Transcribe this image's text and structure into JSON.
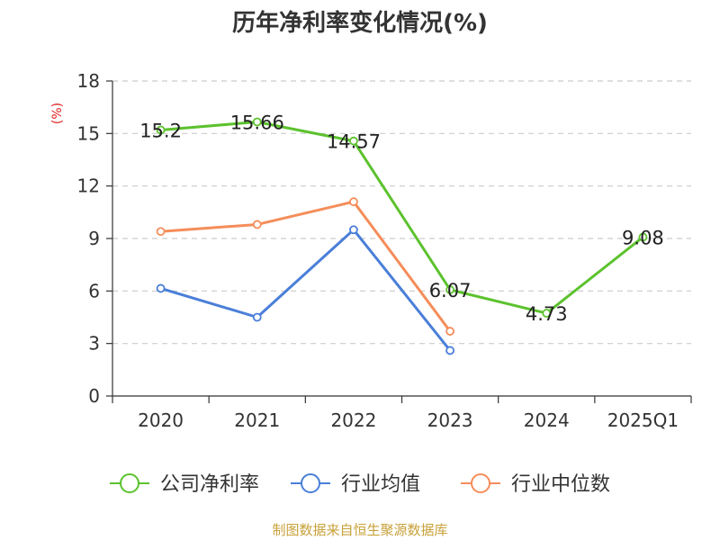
{
  "chart_data": {
    "type": "line",
    "title": "历年净利率变化情况(%)",
    "ylabel": "(%)",
    "xlabel": "",
    "categories": [
      "2020",
      "2021",
      "2022",
      "2023",
      "2024",
      "2025Q1"
    ],
    "ylim": [
      0,
      18
    ],
    "yticks": [
      0,
      3,
      6,
      9,
      12,
      15,
      18
    ],
    "ytick_labels": [
      "0",
      "3",
      "6",
      "9",
      "12",
      "15",
      "18"
    ],
    "grid": true,
    "legend_position": "bottom",
    "series": [
      {
        "name": "公司净利率",
        "color": "#5cc22e",
        "values": [
          15.2,
          15.66,
          14.57,
          6.07,
          4.73,
          9.08
        ],
        "labels": [
          "15.2",
          "15.66",
          "14.57",
          "6.07",
          "4.73",
          "9.08"
        ]
      },
      {
        "name": "行业均值",
        "color": "#4a7fd8",
        "values": [
          6.15,
          4.5,
          9.5,
          2.6,
          null,
          null
        ]
      },
      {
        "name": "行业中位数",
        "color": "#f58d5a",
        "values": [
          9.4,
          9.8,
          11.1,
          3.7,
          null,
          null
        ]
      }
    ]
  },
  "source": {
    "text": "制图数据来自恒生聚源数据库",
    "color": "#c8a13a"
  },
  "colors": {
    "axis": "#333333",
    "grid": "#cccccc",
    "ylabel": "#e02020"
  }
}
